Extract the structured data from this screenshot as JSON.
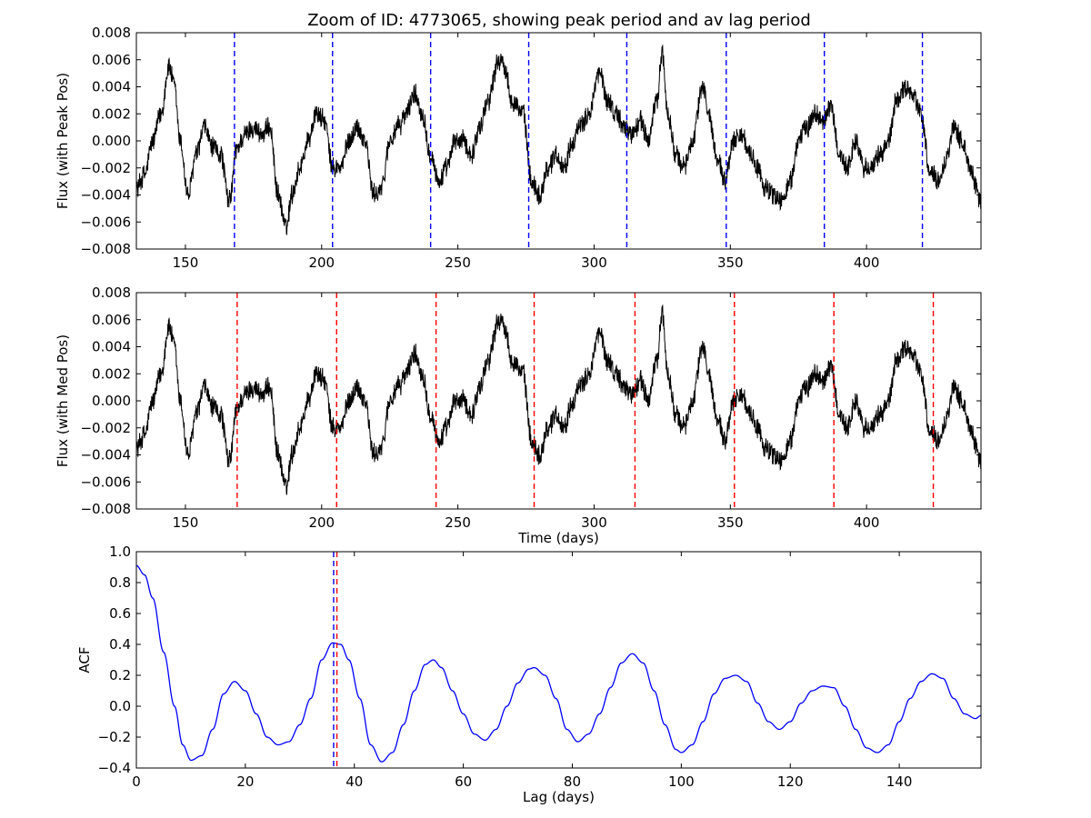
{
  "figure": {
    "title": "Zoom of ID: 4773065, showing peak period and av lag period"
  },
  "chart_data": [
    {
      "type": "line",
      "ylabel": "Flux (with Peak Pos)",
      "xlabel": "",
      "xlim": [
        132,
        442
      ],
      "ylim": [
        -0.008,
        0.008
      ],
      "xticks": [
        150,
        200,
        250,
        300,
        350,
        400
      ],
      "yticks": [
        -0.008,
        -0.006,
        -0.004,
        -0.002,
        0.0,
        0.002,
        0.004,
        0.006,
        0.008
      ],
      "ytick_labels": [
        "−0.008",
        "−0.006",
        "−0.004",
        "−0.002",
        "0.000",
        "0.002",
        "0.004",
        "0.006",
        "0.008"
      ],
      "series_color": "#000000",
      "noise_amplitude": 0.0009,
      "series_points": [
        [
          132,
          -0.0035
        ],
        [
          135,
          -0.0025
        ],
        [
          138,
          0.0
        ],
        [
          141,
          0.002
        ],
        [
          144,
          0.0055
        ],
        [
          146,
          0.004
        ],
        [
          148,
          0.0
        ],
        [
          151,
          -0.004
        ],
        [
          154,
          -0.001
        ],
        [
          157,
          0.001
        ],
        [
          160,
          -0.0005
        ],
        [
          163,
          -0.001
        ],
        [
          166,
          -0.0045
        ],
        [
          169,
          -0.0005
        ],
        [
          172,
          0.0005
        ],
        [
          175,
          0.001
        ],
        [
          178,
          0.0005
        ],
        [
          181,
          0.001
        ],
        [
          184,
          -0.004
        ],
        [
          187,
          -0.0065
        ],
        [
          189,
          -0.004
        ],
        [
          192,
          -0.002
        ],
        [
          195,
          0.0
        ],
        [
          198,
          0.002
        ],
        [
          201,
          0.0015
        ],
        [
          204,
          -0.002
        ],
        [
          207,
          -0.002
        ],
        [
          210,
          0.0
        ],
        [
          213,
          0.001
        ],
        [
          216,
          0.0
        ],
        [
          219,
          -0.004
        ],
        [
          222,
          -0.0035
        ],
        [
          225,
          0.0
        ],
        [
          228,
          0.001
        ],
        [
          231,
          0.002
        ],
        [
          234,
          0.0035
        ],
        [
          237,
          0.002
        ],
        [
          240,
          -0.001
        ],
        [
          243,
          -0.003
        ],
        [
          246,
          -0.002
        ],
        [
          249,
          0.0
        ],
        [
          252,
          0.0
        ],
        [
          255,
          -0.001
        ],
        [
          258,
          0.001
        ],
        [
          261,
          0.003
        ],
        [
          265,
          0.006
        ],
        [
          267,
          0.0055
        ],
        [
          270,
          0.003
        ],
        [
          274,
          0.002
        ],
        [
          277,
          -0.003
        ],
        [
          280,
          -0.004
        ],
        [
          283,
          -0.002
        ],
        [
          286,
          -0.001
        ],
        [
          289,
          -0.002
        ],
        [
          292,
          0.0
        ],
        [
          295,
          0.001
        ],
        [
          298,
          0.002
        ],
        [
          302,
          0.005
        ],
        [
          305,
          0.003
        ],
        [
          308,
          0.002
        ],
        [
          311,
          0.001
        ],
        [
          314,
          0.0005
        ],
        [
          317,
          0.0015
        ],
        [
          320,
          0.0
        ],
        [
          323,
          0.003
        ],
        [
          325,
          0.0065
        ],
        [
          327,
          0.002
        ],
        [
          330,
          -0.001
        ],
        [
          333,
          -0.002
        ],
        [
          336,
          0.0
        ],
        [
          340,
          0.004
        ],
        [
          342,
          0.002
        ],
        [
          345,
          -0.001
        ],
        [
          348,
          -0.003
        ],
        [
          351,
          0.0
        ],
        [
          354,
          0.0005
        ],
        [
          357,
          -0.001
        ],
        [
          360,
          -0.002
        ],
        [
          363,
          -0.0035
        ],
        [
          366,
          -0.004
        ],
        [
          369,
          -0.0045
        ],
        [
          372,
          -0.003
        ],
        [
          375,
          0.0
        ],
        [
          378,
          0.001
        ],
        [
          381,
          0.002
        ],
        [
          384,
          0.0015
        ],
        [
          387,
          0.0025
        ],
        [
          390,
          -0.001
        ],
        [
          393,
          -0.002
        ],
        [
          396,
          0.0
        ],
        [
          399,
          -0.002
        ],
        [
          402,
          -0.002
        ],
        [
          405,
          -0.001
        ],
        [
          408,
          0.0
        ],
        [
          411,
          0.003
        ],
        [
          414,
          0.004
        ],
        [
          417,
          0.0035
        ],
        [
          420,
          0.002
        ],
        [
          423,
          -0.002
        ],
        [
          426,
          -0.003
        ],
        [
          429,
          -0.0015
        ],
        [
          432,
          0.001
        ],
        [
          435,
          0.0
        ],
        [
          438,
          -0.002
        ],
        [
          442,
          -0.0045
        ]
      ],
      "vlines": {
        "color": "#0000ff",
        "x": [
          168,
          204,
          240,
          276,
          312,
          348.5,
          384.5,
          420.5
        ]
      }
    },
    {
      "type": "line",
      "ylabel": "Flux (with Med Pos)",
      "xlabel": "Time (days)",
      "xlim": [
        132,
        442
      ],
      "ylim": [
        -0.008,
        0.008
      ],
      "xticks": [
        150,
        200,
        250,
        300,
        350,
        400
      ],
      "yticks": [
        -0.008,
        -0.006,
        -0.004,
        -0.002,
        0.0,
        0.002,
        0.004,
        0.006,
        0.008
      ],
      "ytick_labels": [
        "−0.008",
        "−0.006",
        "−0.004",
        "−0.002",
        "0.000",
        "0.002",
        "0.004",
        "0.006",
        "0.008"
      ],
      "series_color": "#000000",
      "noise_amplitude": 0.0009,
      "series_points": [
        [
          132,
          -0.0035
        ],
        [
          135,
          -0.0025
        ],
        [
          138,
          0.0
        ],
        [
          141,
          0.002
        ],
        [
          144,
          0.0055
        ],
        [
          146,
          0.004
        ],
        [
          148,
          0.0
        ],
        [
          151,
          -0.004
        ],
        [
          154,
          -0.001
        ],
        [
          157,
          0.001
        ],
        [
          160,
          -0.0005
        ],
        [
          163,
          -0.001
        ],
        [
          166,
          -0.0045
        ],
        [
          169,
          -0.0005
        ],
        [
          172,
          0.0005
        ],
        [
          175,
          0.001
        ],
        [
          178,
          0.0005
        ],
        [
          181,
          0.001
        ],
        [
          184,
          -0.004
        ],
        [
          187,
          -0.0065
        ],
        [
          189,
          -0.004
        ],
        [
          192,
          -0.002
        ],
        [
          195,
          0.0
        ],
        [
          198,
          0.002
        ],
        [
          201,
          0.0015
        ],
        [
          204,
          -0.002
        ],
        [
          207,
          -0.002
        ],
        [
          210,
          0.0
        ],
        [
          213,
          0.001
        ],
        [
          216,
          0.0
        ],
        [
          219,
          -0.004
        ],
        [
          222,
          -0.0035
        ],
        [
          225,
          0.0
        ],
        [
          228,
          0.001
        ],
        [
          231,
          0.002
        ],
        [
          234,
          0.0035
        ],
        [
          237,
          0.002
        ],
        [
          240,
          -0.001
        ],
        [
          243,
          -0.003
        ],
        [
          246,
          -0.002
        ],
        [
          249,
          0.0
        ],
        [
          252,
          0.0
        ],
        [
          255,
          -0.001
        ],
        [
          258,
          0.001
        ],
        [
          261,
          0.003
        ],
        [
          265,
          0.006
        ],
        [
          267,
          0.0055
        ],
        [
          270,
          0.003
        ],
        [
          274,
          0.002
        ],
        [
          277,
          -0.003
        ],
        [
          280,
          -0.004
        ],
        [
          283,
          -0.002
        ],
        [
          286,
          -0.001
        ],
        [
          289,
          -0.002
        ],
        [
          292,
          0.0
        ],
        [
          295,
          0.001
        ],
        [
          298,
          0.002
        ],
        [
          302,
          0.005
        ],
        [
          305,
          0.003
        ],
        [
          308,
          0.002
        ],
        [
          311,
          0.001
        ],
        [
          314,
          0.0005
        ],
        [
          317,
          0.0015
        ],
        [
          320,
          0.0
        ],
        [
          323,
          0.003
        ],
        [
          325,
          0.0065
        ],
        [
          327,
          0.002
        ],
        [
          330,
          -0.001
        ],
        [
          333,
          -0.002
        ],
        [
          336,
          0.0
        ],
        [
          340,
          0.004
        ],
        [
          342,
          0.002
        ],
        [
          345,
          -0.001
        ],
        [
          348,
          -0.003
        ],
        [
          351,
          0.0
        ],
        [
          354,
          0.0005
        ],
        [
          357,
          -0.001
        ],
        [
          360,
          -0.002
        ],
        [
          363,
          -0.0035
        ],
        [
          366,
          -0.004
        ],
        [
          369,
          -0.0045
        ],
        [
          372,
          -0.003
        ],
        [
          375,
          0.0
        ],
        [
          378,
          0.001
        ],
        [
          381,
          0.002
        ],
        [
          384,
          0.0015
        ],
        [
          387,
          0.0025
        ],
        [
          390,
          -0.001
        ],
        [
          393,
          -0.002
        ],
        [
          396,
          0.0
        ],
        [
          399,
          -0.002
        ],
        [
          402,
          -0.002
        ],
        [
          405,
          -0.001
        ],
        [
          408,
          0.0
        ],
        [
          411,
          0.003
        ],
        [
          414,
          0.004
        ],
        [
          417,
          0.0035
        ],
        [
          420,
          0.002
        ],
        [
          423,
          -0.002
        ],
        [
          426,
          -0.003
        ],
        [
          429,
          -0.0015
        ],
        [
          432,
          0.001
        ],
        [
          435,
          0.0
        ],
        [
          438,
          -0.002
        ],
        [
          442,
          -0.0045
        ]
      ],
      "vlines": {
        "color": "#ff0000",
        "x": [
          169,
          205.5,
          242,
          278,
          315,
          351.5,
          388,
          424.5
        ]
      }
    },
    {
      "type": "line",
      "ylabel": "ACF",
      "xlabel": "Lag (days)",
      "xlim": [
        0,
        155
      ],
      "ylim": [
        -0.4,
        1.0
      ],
      "xticks": [
        0,
        20,
        40,
        60,
        80,
        100,
        120,
        140
      ],
      "yticks": [
        -0.4,
        -0.2,
        0.0,
        0.2,
        0.4,
        0.6,
        0.8,
        1.0
      ],
      "ytick_labels": [
        "−0.4",
        "−0.2",
        "0.0",
        "0.2",
        "0.4",
        "0.6",
        "0.8",
        "1.0"
      ],
      "series_color": "#0000ff",
      "noise_amplitude": 0,
      "series_points": [
        [
          0,
          0.91
        ],
        [
          1.5,
          0.85
        ],
        [
          3,
          0.7
        ],
        [
          5,
          0.35
        ],
        [
          7,
          0.0
        ],
        [
          8.5,
          -0.25
        ],
        [
          10,
          -0.35
        ],
        [
          12,
          -0.32
        ],
        [
          14,
          -0.15
        ],
        [
          16,
          0.08
        ],
        [
          18,
          0.16
        ],
        [
          20,
          0.1
        ],
        [
          22,
          -0.05
        ],
        [
          24,
          -0.2
        ],
        [
          26,
          -0.25
        ],
        [
          28,
          -0.23
        ],
        [
          30,
          -0.12
        ],
        [
          32,
          0.05
        ],
        [
          34,
          0.3
        ],
        [
          36,
          0.41
        ],
        [
          37.5,
          0.4
        ],
        [
          39,
          0.3
        ],
        [
          41,
          0.05
        ],
        [
          43,
          -0.25
        ],
        [
          45,
          -0.36
        ],
        [
          47,
          -0.3
        ],
        [
          49,
          -0.12
        ],
        [
          51,
          0.1
        ],
        [
          53,
          0.27
        ],
        [
          54.5,
          0.3
        ],
        [
          56,
          0.25
        ],
        [
          58,
          0.1
        ],
        [
          60,
          -0.05
        ],
        [
          62,
          -0.18
        ],
        [
          64,
          -0.22
        ],
        [
          66,
          -0.15
        ],
        [
          68,
          0.0
        ],
        [
          70,
          0.15
        ],
        [
          72,
          0.24
        ],
        [
          73,
          0.25
        ],
        [
          75,
          0.2
        ],
        [
          77,
          0.05
        ],
        [
          79,
          -0.15
        ],
        [
          81,
          -0.23
        ],
        [
          83,
          -0.18
        ],
        [
          85,
          -0.05
        ],
        [
          87,
          0.12
        ],
        [
          89,
          0.28
        ],
        [
          91,
          0.34
        ],
        [
          93,
          0.28
        ],
        [
          95,
          0.1
        ],
        [
          97,
          -0.12
        ],
        [
          99,
          -0.28
        ],
        [
          100,
          -0.3
        ],
        [
          102,
          -0.25
        ],
        [
          104,
          -0.1
        ],
        [
          106,
          0.08
        ],
        [
          108,
          0.18
        ],
        [
          110,
          0.2
        ],
        [
          112,
          0.16
        ],
        [
          114,
          0.02
        ],
        [
          116,
          -0.1
        ],
        [
          118,
          -0.15
        ],
        [
          120,
          -0.1
        ],
        [
          122,
          0.02
        ],
        [
          124,
          0.1
        ],
        [
          126,
          0.13
        ],
        [
          128,
          0.12
        ],
        [
          130,
          0.0
        ],
        [
          132,
          -0.15
        ],
        [
          134,
          -0.27
        ],
        [
          136,
          -0.3
        ],
        [
          138,
          -0.25
        ],
        [
          140,
          -0.1
        ],
        [
          142,
          0.05
        ],
        [
          144,
          0.16
        ],
        [
          146,
          0.21
        ],
        [
          148,
          0.18
        ],
        [
          150,
          0.05
        ],
        [
          152,
          -0.05
        ],
        [
          154,
          -0.08
        ],
        [
          155,
          -0.06
        ]
      ],
      "vlines": [
        {
          "color": "#0000ff",
          "x": 36.2
        },
        {
          "color": "#ff0000",
          "x": 36.8
        }
      ]
    }
  ]
}
